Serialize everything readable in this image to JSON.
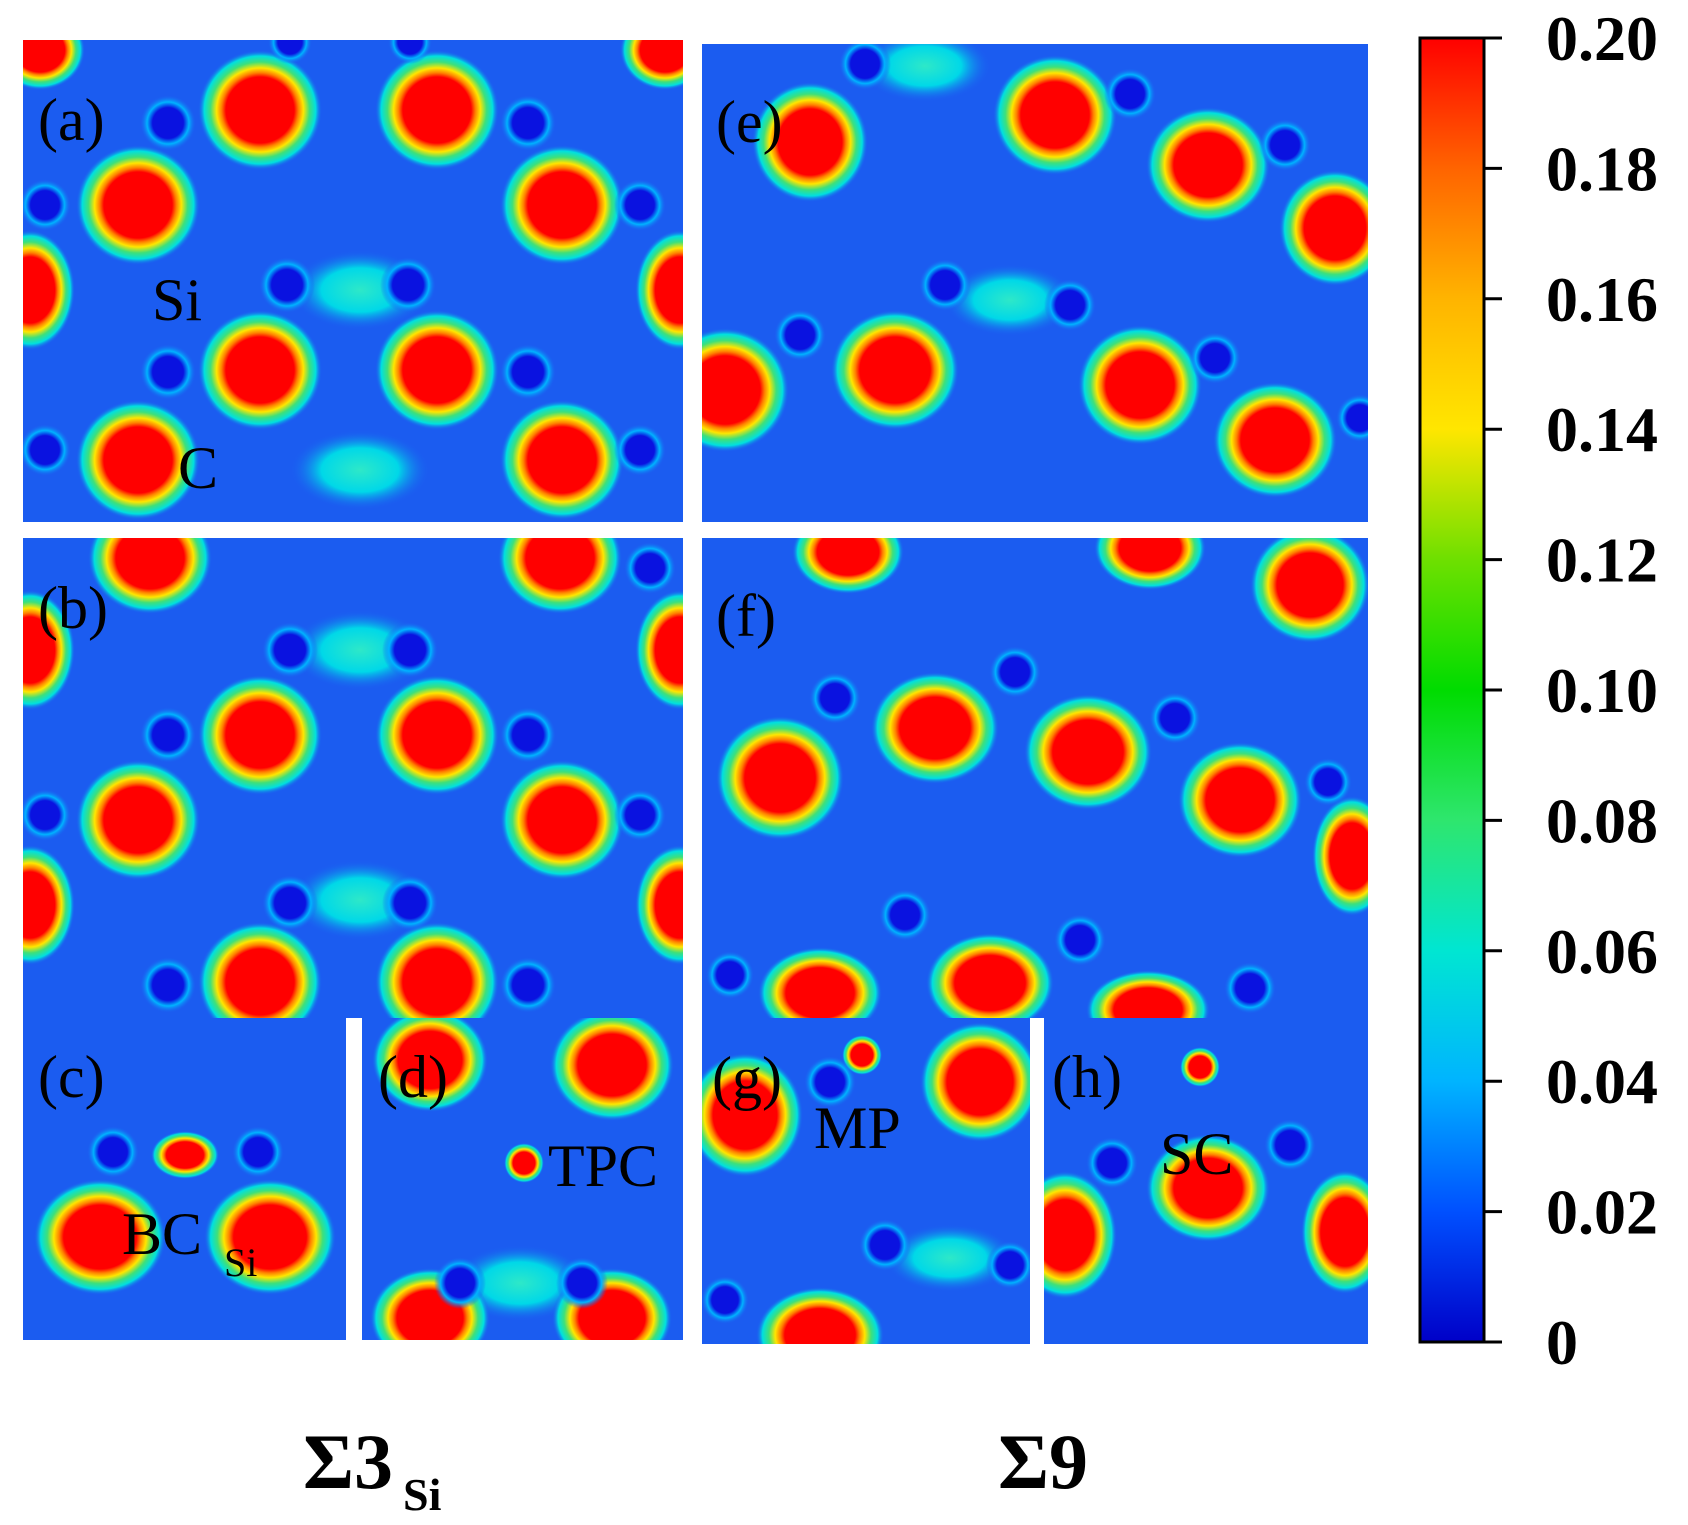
{
  "panels": {
    "a": {
      "label": "(a)",
      "annotations": [
        "Si",
        "C"
      ]
    },
    "b": {
      "label": "(b)"
    },
    "c": {
      "label": "(c)",
      "annotation": {
        "text": "BC",
        "sub": "Si"
      }
    },
    "d": {
      "label": "(d)",
      "annotation": "TPC"
    },
    "e": {
      "label": "(e)"
    },
    "f": {
      "label": "(f)"
    },
    "g": {
      "label": "(g)",
      "annotation": "MP"
    },
    "h": {
      "label": "(h)",
      "annotation": "SC"
    }
  },
  "group_labels": {
    "left": {
      "text": "Σ3",
      "sub": "Si"
    },
    "right": {
      "text": "Σ9"
    }
  },
  "colorbar": {
    "ticks": [
      "0.20",
      "0.18",
      "0.16",
      "0.14",
      "0.12",
      "0.10",
      "0.08",
      "0.06",
      "0.04",
      "0.02",
      "0"
    ],
    "min": 0,
    "max": 0.2,
    "colors": [
      "#0000c8",
      "#0050ff",
      "#00b4ff",
      "#00e6d2",
      "#2ee66e",
      "#00dc00",
      "#b4e600",
      "#ffdc00",
      "#ff8c00",
      "#ff1e00"
    ]
  },
  "colors": {
    "background": "#1b5cf0",
    "low": "#0a12e0",
    "mid": "#00e0e0",
    "green": "#3ee07a",
    "yellow": "#ffe600",
    "high": "#ff0000"
  }
}
